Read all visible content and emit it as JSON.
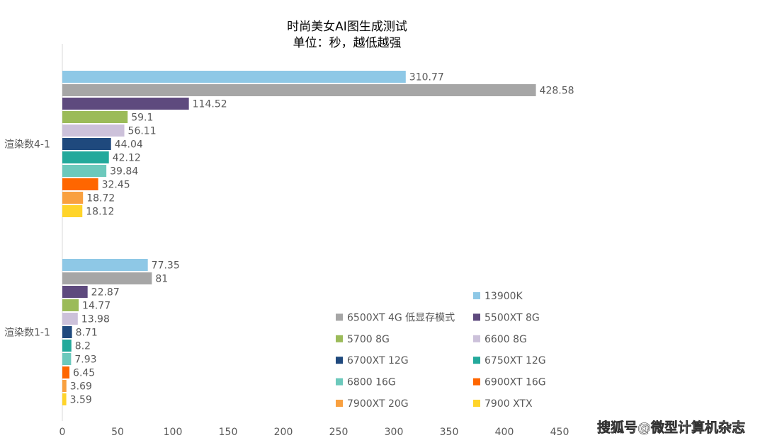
{
  "chart_data": {
    "type": "hbar",
    "title": "时尚美女AI图生成测试",
    "subtitle": "单位：秒，越低越强",
    "categories": [
      "渲染数4-1",
      "渲染数1-1"
    ],
    "series": [
      {
        "name": "13900K",
        "color": "#8ec8e6",
        "values": [
          310.77,
          77.35
        ]
      },
      {
        "name": "6500XT 4G 低显存模式",
        "color": "#a6a6a6",
        "values": [
          428.58,
          81
        ]
      },
      {
        "name": "5500XT 8G",
        "color": "#5e4a7e",
        "values": [
          114.52,
          22.87
        ]
      },
      {
        "name": "5700 8G",
        "color": "#9bbb59",
        "values": [
          59.1,
          14.77
        ]
      },
      {
        "name": "6600 8G",
        "color": "#ccc1da",
        "values": [
          56.11,
          13.98
        ]
      },
      {
        "name": "6700XT 12G",
        "color": "#1f497d",
        "values": [
          44.04,
          8.71
        ]
      },
      {
        "name": "6750XT 12G",
        "color": "#23a99b",
        "values": [
          42.12,
          8.2
        ]
      },
      {
        "name": "6800 16G",
        "color": "#6cc9bc",
        "values": [
          39.84,
          7.93
        ]
      },
      {
        "name": "6900XT 16G",
        "color": "#ff6600",
        "values": [
          32.45,
          6.45
        ]
      },
      {
        "name": "7900XT 20G",
        "color": "#f9a03f",
        "values": [
          18.72,
          3.69
        ]
      },
      {
        "name": "7900 XTX",
        "color": "#ffd42a",
        "values": [
          18.12,
          3.59
        ]
      }
    ],
    "xlim": [
      0,
      450
    ],
    "xticks": [
      0,
      50,
      100,
      150,
      200,
      250,
      300,
      350,
      400,
      450
    ],
    "watermark": "搜狐号@微型计算机杂志"
  }
}
